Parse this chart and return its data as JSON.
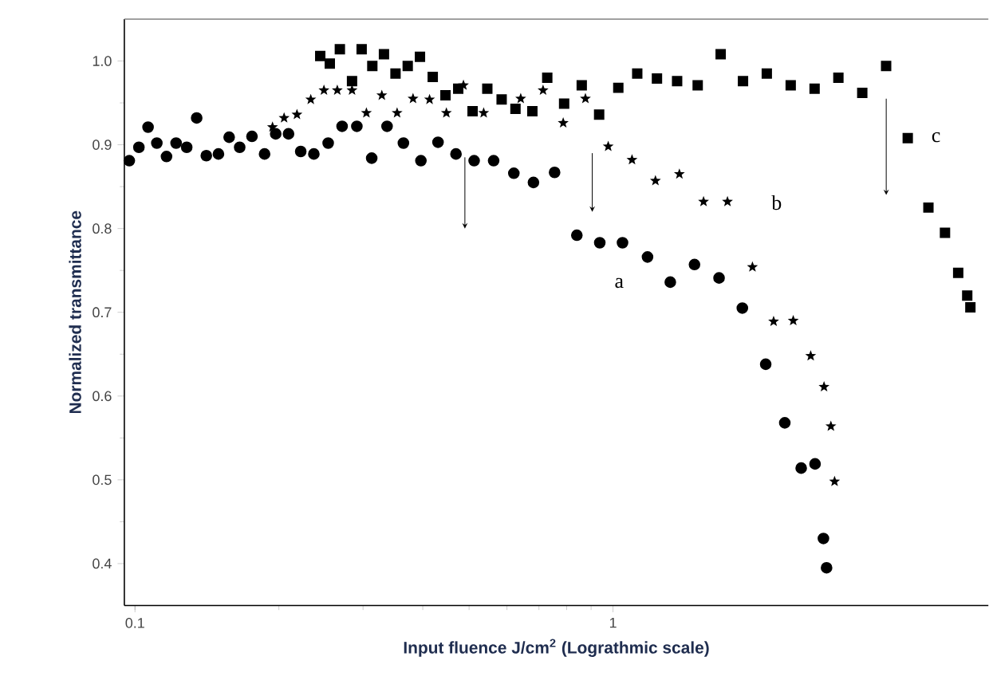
{
  "chart_data": {
    "type": "scatter",
    "xlabel": "Input fluence J/cm$^{2}$ (Lograthmic scale)",
    "ylabel": "Normalized transmittance",
    "log": "x",
    "xlim": [
      0.095,
      6.1
    ],
    "ylim": [
      0.35,
      1.05
    ],
    "xticks": [
      0.1,
      1
    ],
    "yticks": [
      {
        "value": 0.4,
        "label": "0.4"
      },
      {
        "value": 0.5,
        "label": "0.5"
      },
      {
        "value": 0.6,
        "label": "0.6"
      },
      {
        "value": 0.7,
        "label": "0.7"
      },
      {
        "value": 0.8,
        "label": "0.8"
      },
      {
        "value": 0.9,
        "label": "0.9"
      },
      {
        "value": 1.0,
        "label": "1.0"
      }
    ],
    "series": [
      {
        "name": "a",
        "color": "#000000",
        "marker": "circle",
        "x": [
          0.0973,
          0.1019,
          0.1065,
          0.1111,
          0.1164,
          0.1219,
          0.1283,
          0.1346,
          0.141,
          0.1495,
          0.1574,
          0.1656,
          0.1757,
          0.1867,
          0.197,
          0.2095,
          0.2222,
          0.2367,
          0.2536,
          0.2712,
          0.2912,
          0.3128,
          0.3368,
          0.3644,
          0.3965,
          0.4305,
          0.4694,
          0.5123,
          0.5628,
          0.6203,
          0.6818,
          0.7549,
          0.8403,
          0.9384,
          1.047,
          1.181,
          1.318,
          1.481,
          1.667,
          1.865,
          2.087,
          2.288,
          2.476,
          2.647,
          2.756,
          2.798
        ],
        "values": [
          0.881,
          0.897,
          0.921,
          0.902,
          0.886,
          0.902,
          0.897,
          0.932,
          0.887,
          0.889,
          0.909,
          0.897,
          0.91,
          0.889,
          0.913,
          0.913,
          0.892,
          0.889,
          0.902,
          0.922,
          0.922,
          0.884,
          0.922,
          0.902,
          0.881,
          0.903,
          0.889,
          0.881,
          0.881,
          0.866,
          0.855,
          0.867,
          0.792,
          0.783,
          0.783,
          0.766,
          0.736,
          0.757,
          0.741,
          0.705,
          0.638,
          0.568,
          0.514,
          0.519,
          0.43,
          0.395
        ]
      },
      {
        "name": "b",
        "color": "#000000",
        "marker": "star",
        "x": [
          0.194,
          0.2051,
          0.2182,
          0.2332,
          0.2485,
          0.265,
          0.2845,
          0.3049,
          0.3284,
          0.3535,
          0.3817,
          0.4133,
          0.4482,
          0.4866,
          0.5364,
          0.6412,
          0.7141,
          0.7869,
          0.8757,
          0.9773,
          1.096,
          1.227,
          1.377,
          1.547,
          1.736,
          1.958,
          2.168,
          2.383,
          2.592,
          2.764,
          2.857,
          2.908
        ],
        "values": [
          0.921,
          0.932,
          0.936,
          0.954,
          0.965,
          0.965,
          0.965,
          0.938,
          0.959,
          0.938,
          0.955,
          0.954,
          0.938,
          0.971,
          0.938,
          0.955,
          0.965,
          0.926,
          0.955,
          0.898,
          0.882,
          0.857,
          0.865,
          0.832,
          0.832,
          0.754,
          0.689,
          0.69,
          0.648,
          0.611,
          0.564,
          0.498
        ]
      },
      {
        "name": "c",
        "color": "#000000",
        "marker": "square",
        "x": [
          0.2441,
          0.2556,
          0.2683,
          0.2845,
          0.298,
          0.3137,
          0.3318,
          0.3508,
          0.3721,
          0.3947,
          0.4197,
          0.4462,
          0.4745,
          0.5085,
          0.5459,
          0.5849,
          0.6252,
          0.6782,
          0.7287,
          0.7904,
          0.8603,
          0.9355,
          1.026,
          1.124,
          1.236,
          1.362,
          1.504,
          1.68,
          1.871,
          2.098,
          2.354,
          2.641,
          2.962,
          3.323,
          3.728,
          4.137,
          4.57,
          4.95,
          5.275,
          5.51,
          5.594
        ],
        "values": [
          1.006,
          0.997,
          1.014,
          0.976,
          1.014,
          0.994,
          1.008,
          0.985,
          0.994,
          1.005,
          0.981,
          0.959,
          0.967,
          0.94,
          0.967,
          0.954,
          0.943,
          0.94,
          0.98,
          0.949,
          0.971,
          0.936,
          0.968,
          0.985,
          0.979,
          0.976,
          0.971,
          1.008,
          0.976,
          0.985,
          0.971,
          0.967,
          0.98,
          0.962,
          0.994,
          0.908,
          0.825,
          0.795,
          0.747,
          0.72,
          0.706
        ]
      }
    ]
  }
}
